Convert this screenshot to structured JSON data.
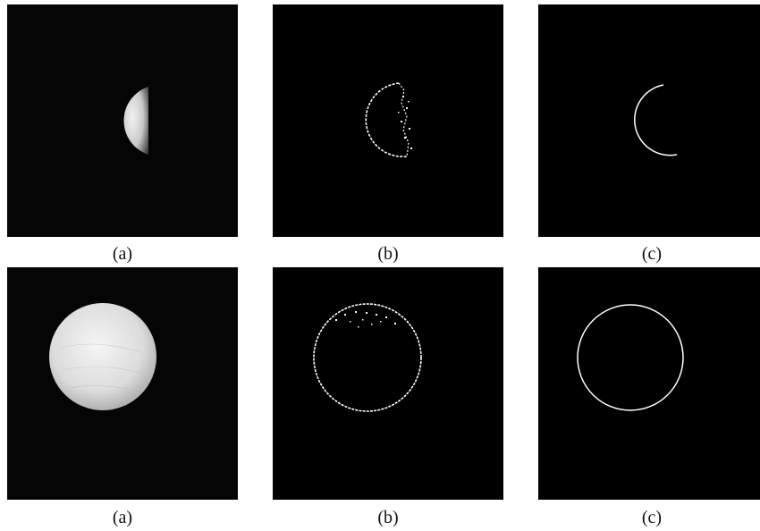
{
  "figure": {
    "rows": [
      {
        "captions": [
          "(a)",
          "(b)",
          "(c)"
        ]
      },
      {
        "captions": [
          "(a)",
          "(b)",
          "(c)"
        ]
      }
    ]
  },
  "colors": {
    "panel_background": "#000000",
    "edge_pixels": "#ffffff",
    "moon_highlight": "#f2f2f2",
    "moon_shadow": "#3a3a3a"
  }
}
